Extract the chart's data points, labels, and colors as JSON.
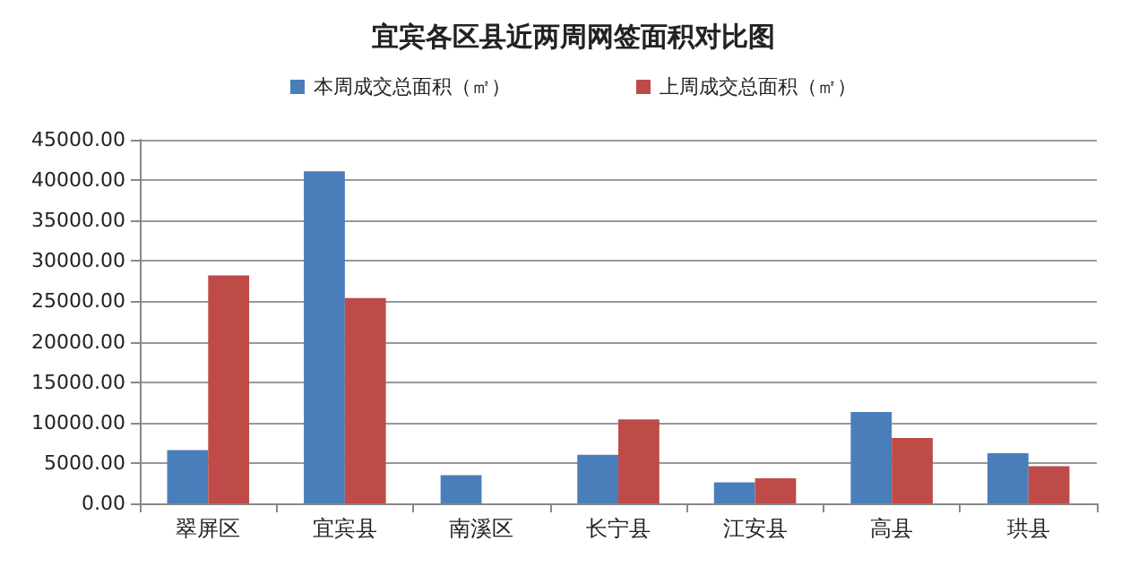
{
  "chart_data": {
    "type": "bar",
    "title": "宜宾各区县近两周网签面积对比图",
    "categories": [
      "翠屏区",
      "宜宾县",
      "南溪区",
      "长宁县",
      "江安县",
      "高县",
      "珙县"
    ],
    "series": [
      {
        "name": "本周成交总面积（㎡）",
        "color": "#4a7ebb",
        "values": [
          6600,
          41100,
          3500,
          6000,
          2600,
          11300,
          6200
        ]
      },
      {
        "name": "上周成交总面积（㎡）",
        "color": "#be4b48",
        "values": [
          28200,
          25400,
          0,
          10400,
          3100,
          8100,
          4600
        ]
      }
    ],
    "ylim": [
      0,
      45000
    ],
    "yticks": [
      {
        "value": 0,
        "label": "0.00"
      },
      {
        "value": 5000,
        "label": "5000.00"
      },
      {
        "value": 10000,
        "label": "10000.00"
      },
      {
        "value": 15000,
        "label": "15000.00"
      },
      {
        "value": 20000,
        "label": "20000.00"
      },
      {
        "value": 25000,
        "label": "25000.00"
      },
      {
        "value": 30000,
        "label": "30000.00"
      },
      {
        "value": 35000,
        "label": "35000.00"
      },
      {
        "value": 40000,
        "label": "40000.00"
      },
      {
        "value": 45000,
        "label": "45000.00"
      }
    ],
    "grid": "y",
    "legend": "top"
  }
}
